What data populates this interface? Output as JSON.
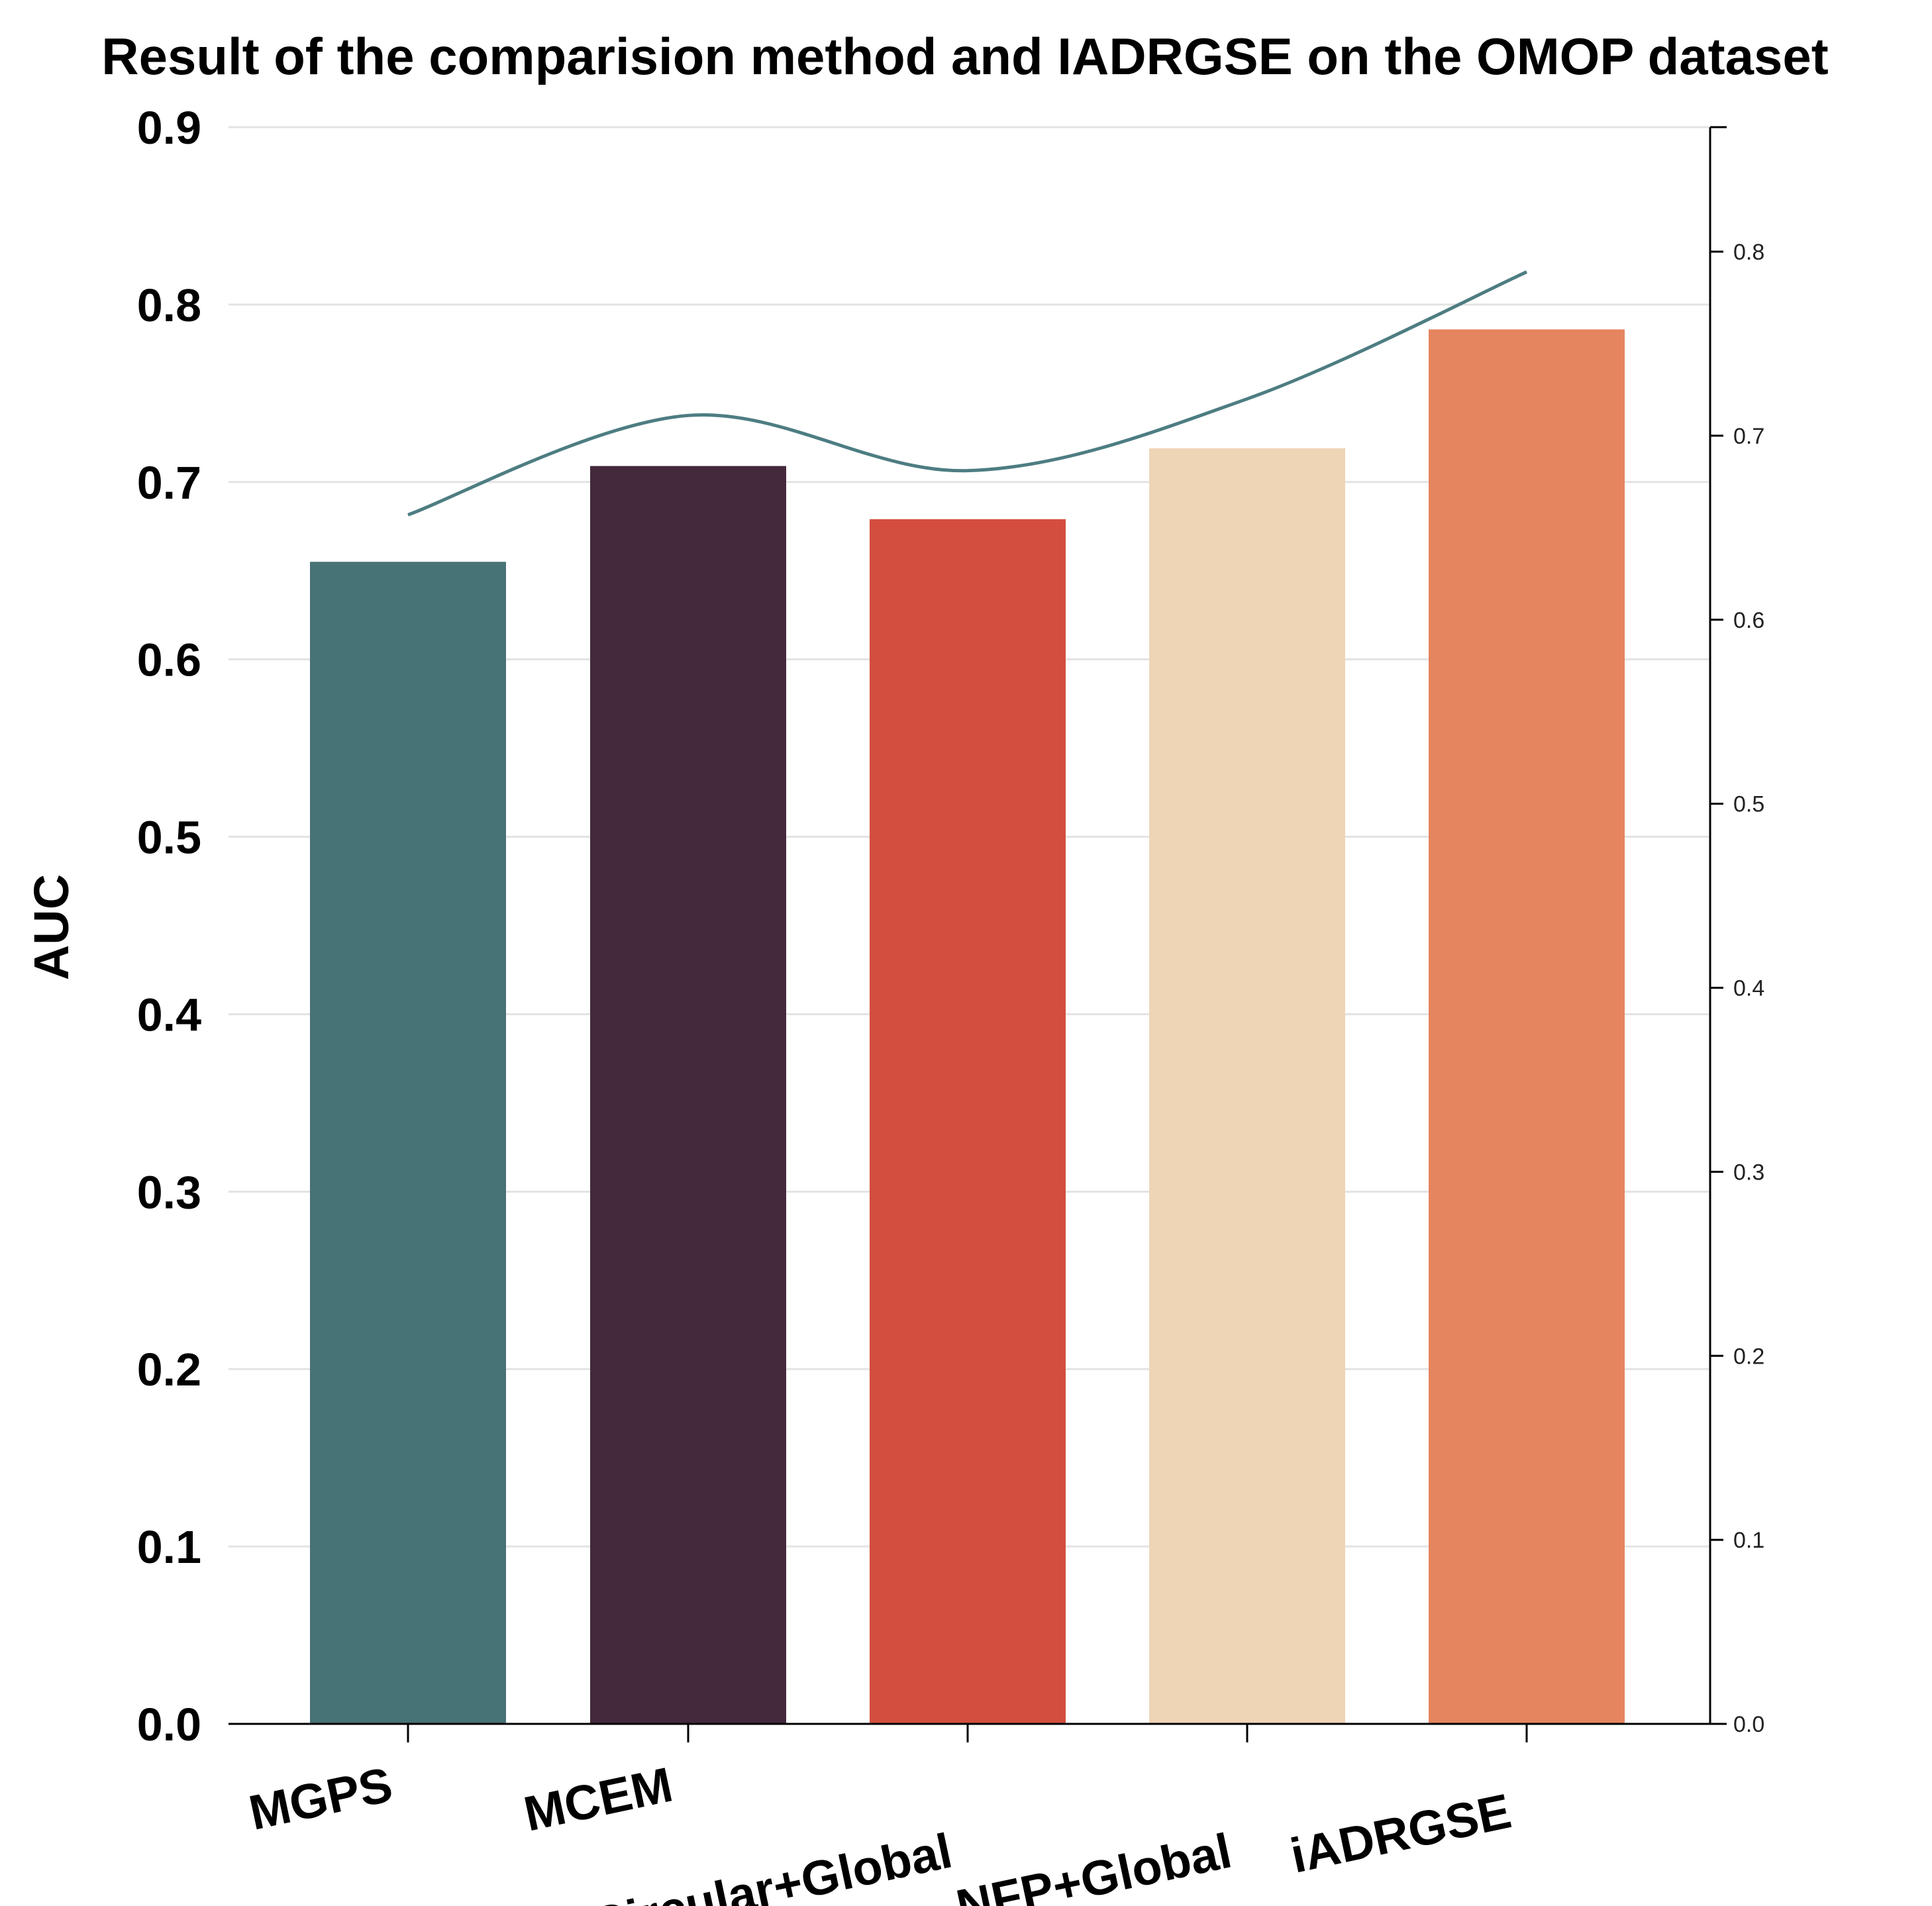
{
  "chart_data": {
    "type": "bar",
    "title": "Result of the comparision method and IADRGSE on the OMOP dataset",
    "xlabel": "",
    "ylabel": "AUC",
    "categories": [
      "MGPS",
      "MCEM",
      "Circular+Global",
      "NFP+Global",
      "iADRGSE"
    ],
    "values": [
      0.655,
      0.709,
      0.679,
      0.719,
      0.786
    ],
    "bar_colors": [
      "#477276",
      "#44293c",
      "#d34e3e",
      "#eed5b6",
      "#e5855f"
    ],
    "ylim": [
      0,
      0.9
    ],
    "yticks": [
      "0.0",
      "0.1",
      "0.2",
      "0.3",
      "0.4",
      "0.5",
      "0.6",
      "0.7",
      "0.8",
      "0.9"
    ],
    "grid": true,
    "secondary_axis": {
      "ylim": [
        0,
        0.868
      ],
      "yticks": [
        "0.0",
        "0.1",
        "0.2",
        "0.3",
        "0.4",
        "0.5",
        "0.6",
        "0.7",
        "0.8"
      ]
    },
    "line_series": {
      "values": [
        0.657,
        0.711,
        0.681,
        0.72,
        0.789
      ],
      "color": "#4d7d82"
    }
  }
}
